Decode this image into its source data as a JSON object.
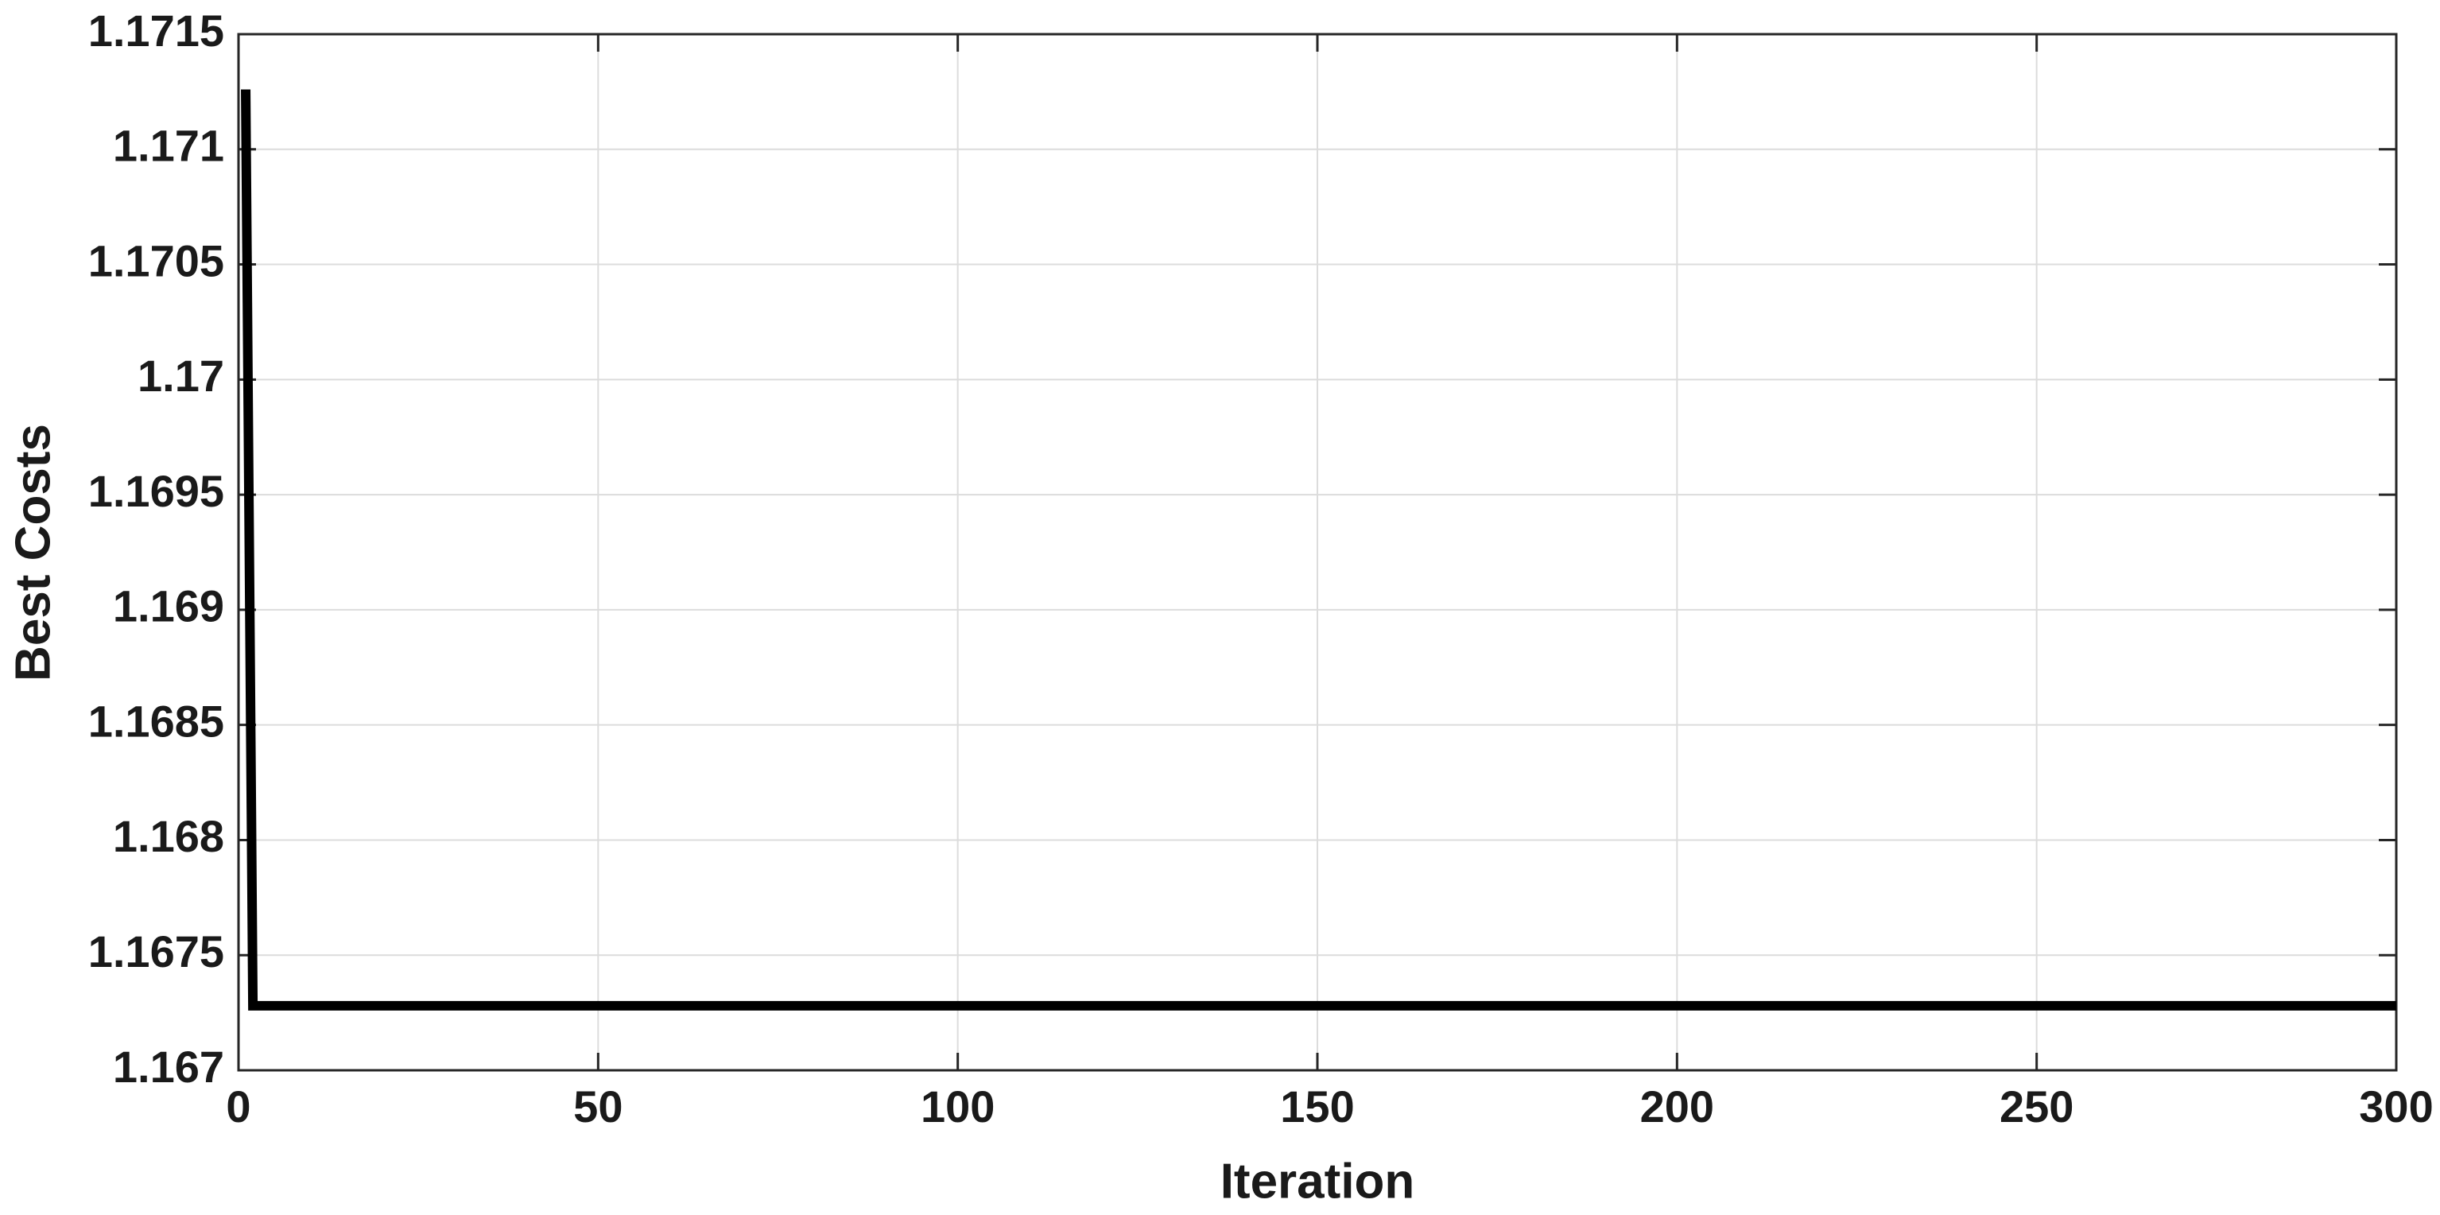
{
  "chart_data": {
    "type": "line",
    "x_label": "Iteration",
    "y_label": "Best  Costs",
    "x": [
      1,
      2,
      300
    ],
    "series": [
      {
        "name": "Best Costs",
        "color": "#000000",
        "values": [
          1.17126,
          1.16728,
          1.16728
        ]
      }
    ],
    "xlim": [
      0,
      300
    ],
    "xticks": [
      0,
      50,
      100,
      150,
      200,
      250,
      300
    ],
    "ylim": [
      1.167,
      1.1715
    ],
    "yticks": [
      1.167,
      1.1675,
      1.168,
      1.1685,
      1.169,
      1.1695,
      1.17,
      1.1705,
      1.171,
      1.1715
    ],
    "grid": true
  }
}
